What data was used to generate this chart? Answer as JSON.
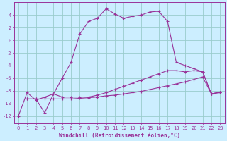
{
  "xlabel": "Windchill (Refroidissement éolien,°C)",
  "bg_color": "#cceeff",
  "grid_color": "#99cccc",
  "line_color": "#993399",
  "xlim": [
    -0.5,
    23.5
  ],
  "ylim": [
    -13.2,
    6.0
  ],
  "yticks": [
    -12,
    -10,
    -8,
    -6,
    -4,
    -2,
    0,
    2,
    4
  ],
  "xticks": [
    0,
    1,
    2,
    3,
    4,
    5,
    6,
    7,
    8,
    9,
    10,
    11,
    12,
    13,
    14,
    15,
    16,
    17,
    18,
    19,
    20,
    21,
    22,
    23
  ],
  "line1_x": [
    0,
    1,
    2,
    3,
    4,
    5,
    6,
    7,
    8,
    9,
    10,
    11,
    12,
    13,
    14,
    15,
    16,
    17,
    18,
    19,
    20,
    21,
    22,
    23
  ],
  "line1_y": [
    -12.0,
    -8.3,
    -9.5,
    -9.0,
    -8.5,
    -6.0,
    -3.5,
    1.0,
    3.0,
    3.5,
    5.0,
    4.2,
    3.5,
    3.8,
    4.0,
    4.5,
    4.6,
    3.0,
    -3.5,
    -4.0,
    -4.5,
    -5.0,
    -8.5,
    -8.3
  ],
  "line2_x": [
    1,
    2,
    3,
    4,
    5,
    6,
    7,
    8,
    9,
    10,
    11,
    12,
    13,
    14,
    15,
    16,
    17,
    18,
    19,
    20,
    21,
    22,
    23
  ],
  "line2_y": [
    -9.3,
    -9.3,
    -11.5,
    -8.5,
    -9.0,
    -9.0,
    -9.0,
    -9.0,
    -8.7,
    -8.3,
    -7.8,
    -7.3,
    -6.8,
    -6.3,
    -5.8,
    -5.3,
    -4.8,
    -4.8,
    -5.0,
    -4.8,
    -5.0,
    -8.5,
    -8.2
  ],
  "line3_x": [
    1,
    2,
    3,
    4,
    5,
    6,
    7,
    8,
    9,
    10,
    11,
    12,
    13,
    14,
    15,
    16,
    17,
    18,
    19,
    20,
    21,
    22,
    23
  ],
  "line3_y": [
    -9.3,
    -9.3,
    -9.3,
    -9.3,
    -9.3,
    -9.3,
    -9.2,
    -9.1,
    -9.0,
    -8.8,
    -8.7,
    -8.5,
    -8.3,
    -8.1,
    -7.8,
    -7.5,
    -7.2,
    -6.9,
    -6.6,
    -6.2,
    -5.8,
    -8.5,
    -8.2
  ],
  "tick_fontsize": 5.0,
  "xlabel_fontsize": 5.5,
  "xlabel_color": "#993399"
}
